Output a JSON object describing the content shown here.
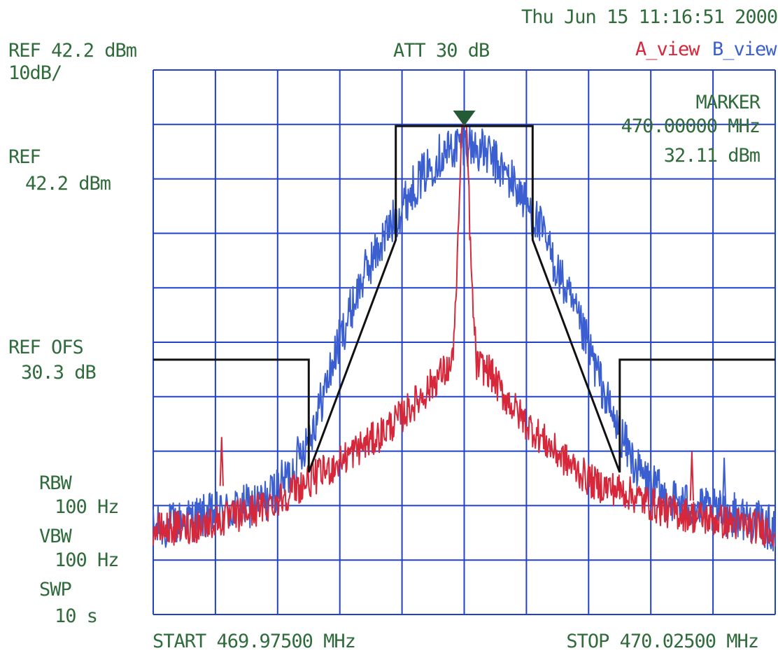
{
  "chart_data": {
    "type": "line",
    "timestamp": "Thu Jun 15 11:16:51 2000",
    "header": {
      "ref": "REF 42.2 dBm",
      "scale": "10dB/",
      "att": "ATT 30 dB",
      "view_a": "A_view",
      "view_b": "B_view"
    },
    "marker": {
      "title": "MARKER",
      "freq": "470.00000 MHz",
      "level": "32.11 dBm",
      "freq_mhz": 470.0,
      "level_dbm": 32.11
    },
    "left_labels": {
      "ref_title": "REF",
      "ref_value": "42.2 dBm",
      "ofs_title": "REF OFS",
      "ofs_value": "30.3 dB",
      "rbw_title": "RBW",
      "rbw_value": "100 Hz",
      "vbw_title": "VBW",
      "vbw_value": "100 Hz",
      "swp_title": "SWP",
      "swp_value": "10 s"
    },
    "start_label": "START 469.97500 MHz",
    "stop_label": "STOP 470.02500 MHz",
    "x_range_mhz": [
      469.975,
      470.025
    ],
    "y_range_dbm": [
      -57.8,
      42.2
    ],
    "grid": true,
    "colors": {
      "grid": "#2340c8",
      "label": "#2f6b3b",
      "series_a": "#d6283a",
      "series_b": "#3b5fd0",
      "mask": "#111111",
      "marker": "#245a35"
    },
    "series": [
      {
        "name": "A_view",
        "x": [
          469.975,
          469.978,
          469.981,
          469.984,
          469.987,
          469.9895,
          469.991,
          469.993,
          469.995,
          469.997,
          469.998,
          469.999,
          469.9994,
          469.9998,
          470.0,
          470.0002,
          470.0006,
          470.001,
          470.002,
          470.003,
          470.005,
          470.007,
          470.009,
          470.0105,
          470.013,
          470.016,
          470.019,
          470.022,
          470.025
        ],
        "y": [
          -42.3,
          -41.7,
          -40.2,
          -38.0,
          -33.9,
          -30.6,
          -28.0,
          -25.2,
          -21.3,
          -16.7,
          -13.8,
          -12.3,
          2.2,
          32.1,
          32.11,
          32.0,
          2.4,
          -12.0,
          -13.0,
          -17.0,
          -22.7,
          -27.2,
          -31.2,
          -33.8,
          -35.3,
          -38.6,
          -40.0,
          -41.2,
          -42.3
        ]
      },
      {
        "name": "B_view",
        "x": [
          469.975,
          469.978,
          469.981,
          469.984,
          469.986,
          469.988,
          469.99,
          469.992,
          469.994,
          469.996,
          469.998,
          470.0,
          470.002,
          470.004,
          470.006,
          470.008,
          470.01,
          470.012,
          470.014,
          470.016,
          470.019,
          470.022,
          470.025
        ],
        "y": [
          -42.3,
          -40.3,
          -39.0,
          -37.0,
          -32.0,
          -22.5,
          -7.3,
          4.9,
          13.2,
          21.0,
          26.5,
          29.0,
          26.5,
          21.4,
          13.8,
          2.6,
          -8.7,
          -22.1,
          -31.6,
          -36.1,
          -38.6,
          -39.6,
          -42.3
        ]
      },
      {
        "name": "mask",
        "x": [
          469.975,
          469.9875,
          469.9875,
          469.9945,
          469.9945,
          470.0055,
          470.0055,
          470.0125,
          470.0125,
          470.025
        ],
        "y": [
          -11.0,
          -11.0,
          -31.7,
          11.0,
          31.9,
          31.9,
          11.0,
          -31.7,
          -11.0,
          -11.0
        ]
      }
    ]
  }
}
